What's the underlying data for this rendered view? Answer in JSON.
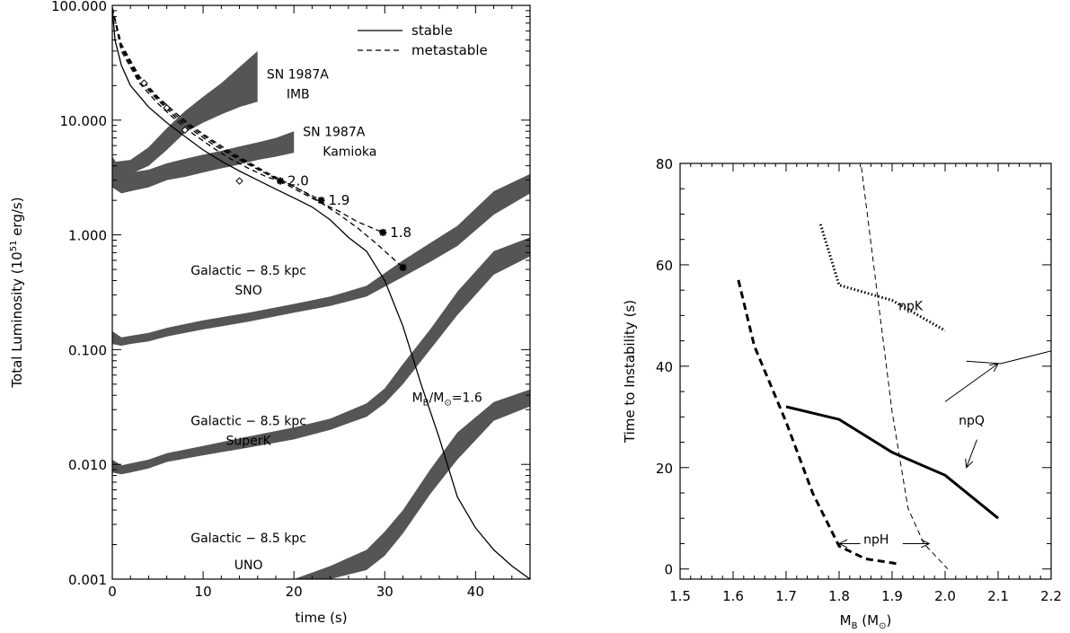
{
  "chart_data": [
    {
      "type": "line",
      "xlabel": "time (s)",
      "ylabel": "Total Luminosity (10^51 erg/s)",
      "ylabel_parts": {
        "pre": "Total Luminosity (10",
        "sup": "51",
        "post": " erg/s)"
      },
      "xscale": "linear",
      "yscale": "log",
      "xlim": [
        0,
        46
      ],
      "ylim": [
        0.001,
        100
      ],
      "x_ticks": [
        0,
        10,
        20,
        30,
        40
      ],
      "x_tick_labels": [
        "0",
        "10",
        "20",
        "30",
        "40"
      ],
      "y_ticks": [
        0.001,
        0.01,
        0.1,
        1,
        10,
        100
      ],
      "y_tick_labels": [
        "0.001",
        "0.010",
        "0.100",
        "1.000",
        "10.000",
        "100.000"
      ],
      "legend": {
        "placement": "top-right",
        "entries": [
          {
            "label": "stable",
            "style": "solid"
          },
          {
            "label": "metastable",
            "style": "dashed"
          }
        ]
      },
      "series": [
        {
          "style": "solid",
          "x": [
            0,
            0.3,
            1,
            2,
            4,
            6,
            8,
            10,
            12,
            14,
            16,
            18,
            20,
            22,
            24,
            26,
            28,
            30,
            32,
            34,
            36,
            38,
            40,
            42,
            44,
            46
          ],
          "y": [
            95,
            50,
            30,
            20,
            13,
            9.5,
            7.2,
            5.5,
            4.4,
            3.6,
            3.0,
            2.5,
            2.1,
            1.75,
            1.35,
            0.95,
            0.72,
            0.4,
            0.16,
            0.05,
            0.017,
            0.0052,
            0.0028,
            0.0018,
            0.0013,
            0.001
          ]
        },
        {
          "style": "dashed",
          "x": [
            0,
            1,
            3,
            5,
            7,
            9,
            11,
            13,
            15,
            17,
            18.5
          ],
          "y": [
            95,
            40,
            21,
            14,
            10,
            7.5,
            5.8,
            4.6,
            3.8,
            3.2,
            2.95
          ]
        },
        {
          "style": "dashed",
          "x": [
            0,
            1,
            3,
            5,
            7,
            9,
            11,
            13,
            15,
            17,
            19,
            21,
            23
          ],
          "y": [
            95,
            42,
            22,
            15,
            10.5,
            8,
            6.2,
            5,
            4.1,
            3.4,
            2.9,
            2.4,
            2.0
          ]
        },
        {
          "style": "dashed",
          "x": [
            0,
            1,
            3,
            5,
            7,
            9,
            11,
            13,
            15,
            17,
            19,
            21,
            23,
            25,
            27,
            29.8
          ],
          "y": [
            95,
            44,
            23,
            15.5,
            11,
            8.3,
            6.5,
            5.1,
            4.2,
            3.4,
            2.8,
            2.3,
            1.9,
            1.6,
            1.3,
            1.05
          ]
        },
        {
          "style": "dashed",
          "x": [
            0,
            1,
            3,
            5,
            7,
            9,
            11,
            13,
            15,
            17,
            19,
            21,
            23,
            25,
            27,
            29,
            32
          ],
          "y": [
            95,
            46,
            24,
            16,
            11.5,
            8.6,
            6.7,
            5.3,
            4.3,
            3.5,
            2.9,
            2.4,
            1.9,
            1.5,
            1.15,
            0.85,
            0.52
          ]
        }
      ],
      "markers": [
        {
          "x": 18.5,
          "y": 2.95,
          "label": "2.0"
        },
        {
          "x": 23,
          "y": 2.0,
          "label": "1.9"
        },
        {
          "x": 29.8,
          "y": 1.05,
          "label": "1.8"
        },
        {
          "x": 32,
          "y": 0.52,
          "label": ""
        }
      ],
      "diamond_markers": [
        {
          "x": 3.5,
          "y": 21
        },
        {
          "x": 6.0,
          "y": 12.8
        },
        {
          "x": 8.0,
          "y": 8.2
        },
        {
          "x": 14.0,
          "y": 2.95
        }
      ],
      "bands": [
        {
          "label_lines": [
            "SN 1987A",
            "IMB"
          ],
          "x": [
            0,
            2,
            4,
            6,
            8,
            10,
            12,
            14,
            16
          ],
          "y_low": [
            3.3,
            3.4,
            4.0,
            5.5,
            7.8,
            9.5,
            11.2,
            13.0,
            14.5
          ],
          "y_high": [
            4.3,
            4.5,
            5.8,
            8.5,
            12.0,
            16.0,
            21.0,
            29.0,
            40.0
          ]
        },
        {
          "label_lines": [
            "SN 1987A",
            "Kamioka"
          ],
          "x": [
            0,
            1,
            2,
            4,
            6,
            8,
            10,
            12,
            14,
            16,
            18,
            20
          ],
          "y_low": [
            2.6,
            2.3,
            2.4,
            2.6,
            3.0,
            3.2,
            3.5,
            3.8,
            4.1,
            4.5,
            4.8,
            5.2
          ],
          "y_high": [
            4.8,
            3.7,
            3.5,
            3.7,
            4.2,
            4.6,
            5.0,
            5.4,
            5.9,
            6.4,
            7.0,
            8.0
          ]
        },
        {
          "label_lines": [
            "Galactic − 8.5 kpc",
            "SNO"
          ],
          "x": [
            0,
            1,
            2,
            4,
            6,
            10,
            15,
            20,
            24,
            28,
            32,
            35,
            38,
            42,
            46
          ],
          "y_low": [
            0.112,
            0.108,
            0.112,
            0.118,
            0.13,
            0.15,
            0.175,
            0.21,
            0.24,
            0.29,
            0.43,
            0.58,
            0.8,
            1.5,
            2.3
          ],
          "y_high": [
            0.145,
            0.128,
            0.132,
            0.14,
            0.155,
            0.18,
            0.21,
            0.25,
            0.29,
            0.36,
            0.6,
            0.85,
            1.2,
            2.4,
            3.4
          ]
        },
        {
          "label_lines": [
            "Galactic − 8.5 kpc",
            "SuperK"
          ],
          "x": [
            0,
            1,
            2,
            4,
            6,
            10,
            15,
            20,
            24,
            28,
            30,
            32,
            35,
            38,
            42,
            46
          ],
          "y_low": [
            0.0085,
            0.0082,
            0.0085,
            0.0092,
            0.0105,
            0.012,
            0.014,
            0.0165,
            0.02,
            0.026,
            0.034,
            0.05,
            0.1,
            0.2,
            0.45,
            0.65
          ],
          "y_high": [
            0.011,
            0.0098,
            0.0102,
            0.011,
            0.0125,
            0.0145,
            0.0175,
            0.021,
            0.025,
            0.034,
            0.046,
            0.075,
            0.15,
            0.32,
            0.72,
            0.95
          ]
        },
        {
          "label_lines": [
            "Galactic − 8.5 kpc",
            "UNO"
          ],
          "x": [
            20,
            24,
            28,
            30,
            32,
            35,
            38,
            42,
            46
          ],
          "y_low": [
            0.001,
            0.001,
            0.0012,
            0.0016,
            0.0025,
            0.0055,
            0.011,
            0.024,
            0.032
          ],
          "y_high": [
            0.001,
            0.0013,
            0.0018,
            0.0026,
            0.004,
            0.009,
            0.019,
            0.035,
            0.045
          ]
        }
      ],
      "annotations": [
        {
          "text_main": "M",
          "text_sub": "B",
          "text_mid": "/M",
          "text_sub2": "⊙",
          "text_post": "=1.6",
          "x": 33,
          "y": 0.035
        }
      ]
    },
    {
      "type": "line",
      "xlabel": "M_B (M_sun)",
      "xlabel_parts": {
        "pre": "M",
        "sub": "B",
        "mid": " (M",
        "sub2": "⊙",
        "post": ")"
      },
      "ylabel": "Time to Instability (s)",
      "xlim": [
        1.5,
        2.2
      ],
      "ylim": [
        -2,
        80
      ],
      "x_ticks": [
        1.5,
        1.6,
        1.7,
        1.8,
        1.9,
        2.0,
        2.1,
        2.2
      ],
      "x_tick_labels": [
        "1.5",
        "1.6",
        "1.7",
        "1.8",
        "1.9",
        "2.0",
        "2.1",
        "2.2"
      ],
      "y_ticks": [
        0,
        20,
        40,
        60,
        80
      ],
      "y_tick_labels": [
        "0",
        "20",
        "40",
        "60",
        "80"
      ],
      "series": [
        {
          "name": "npQ",
          "style": "solid-thick",
          "x": [
            1.7,
            1.8,
            1.9,
            2.0,
            2.1
          ],
          "y": [
            32,
            29.5,
            23,
            18.5,
            10
          ]
        },
        {
          "name": "npK",
          "style": "dotted",
          "x": [
            1.765,
            1.8,
            1.9,
            2.0
          ],
          "y": [
            68,
            56,
            53,
            47
          ]
        },
        {
          "name": "npH",
          "style": "dashed-thick",
          "x": [
            1.61,
            1.64,
            1.7,
            1.75,
            1.8,
            1.85,
            1.9,
            1.91
          ],
          "y": [
            57,
            44,
            29,
            15,
            4.5,
            2,
            1.2,
            1
          ]
        },
        {
          "style": "dashed-thin",
          "x": [
            1.84,
            1.9,
            1.93,
            1.96,
            2.005
          ],
          "y": [
            81,
            31,
            12,
            5,
            0
          ]
        }
      ],
      "annotations": [
        {
          "text": "npK",
          "x": 1.935,
          "y": 51
        },
        {
          "text": "npQ",
          "x": 2.05,
          "y": 28.5
        },
        {
          "text": "npH",
          "x": 1.87,
          "y": 5
        }
      ],
      "arrows": [
        {
          "x1": 2.0,
          "y1": 33,
          "x2": 2.1,
          "y2": 40.5
        },
        {
          "x1": 2.06,
          "y1": 25.5,
          "x2": 2.04,
          "y2": 20
        },
        {
          "x1": 1.84,
          "y1": 5,
          "x2": 1.8,
          "y2": 5
        },
        {
          "x1": 1.92,
          "y1": 5,
          "x2": 1.97,
          "y2": 5
        }
      ],
      "lines": [
        {
          "x": [
            2.04,
            2.105,
            2.2
          ],
          "y": [
            41,
            40.5,
            43
          ]
        }
      ]
    }
  ]
}
